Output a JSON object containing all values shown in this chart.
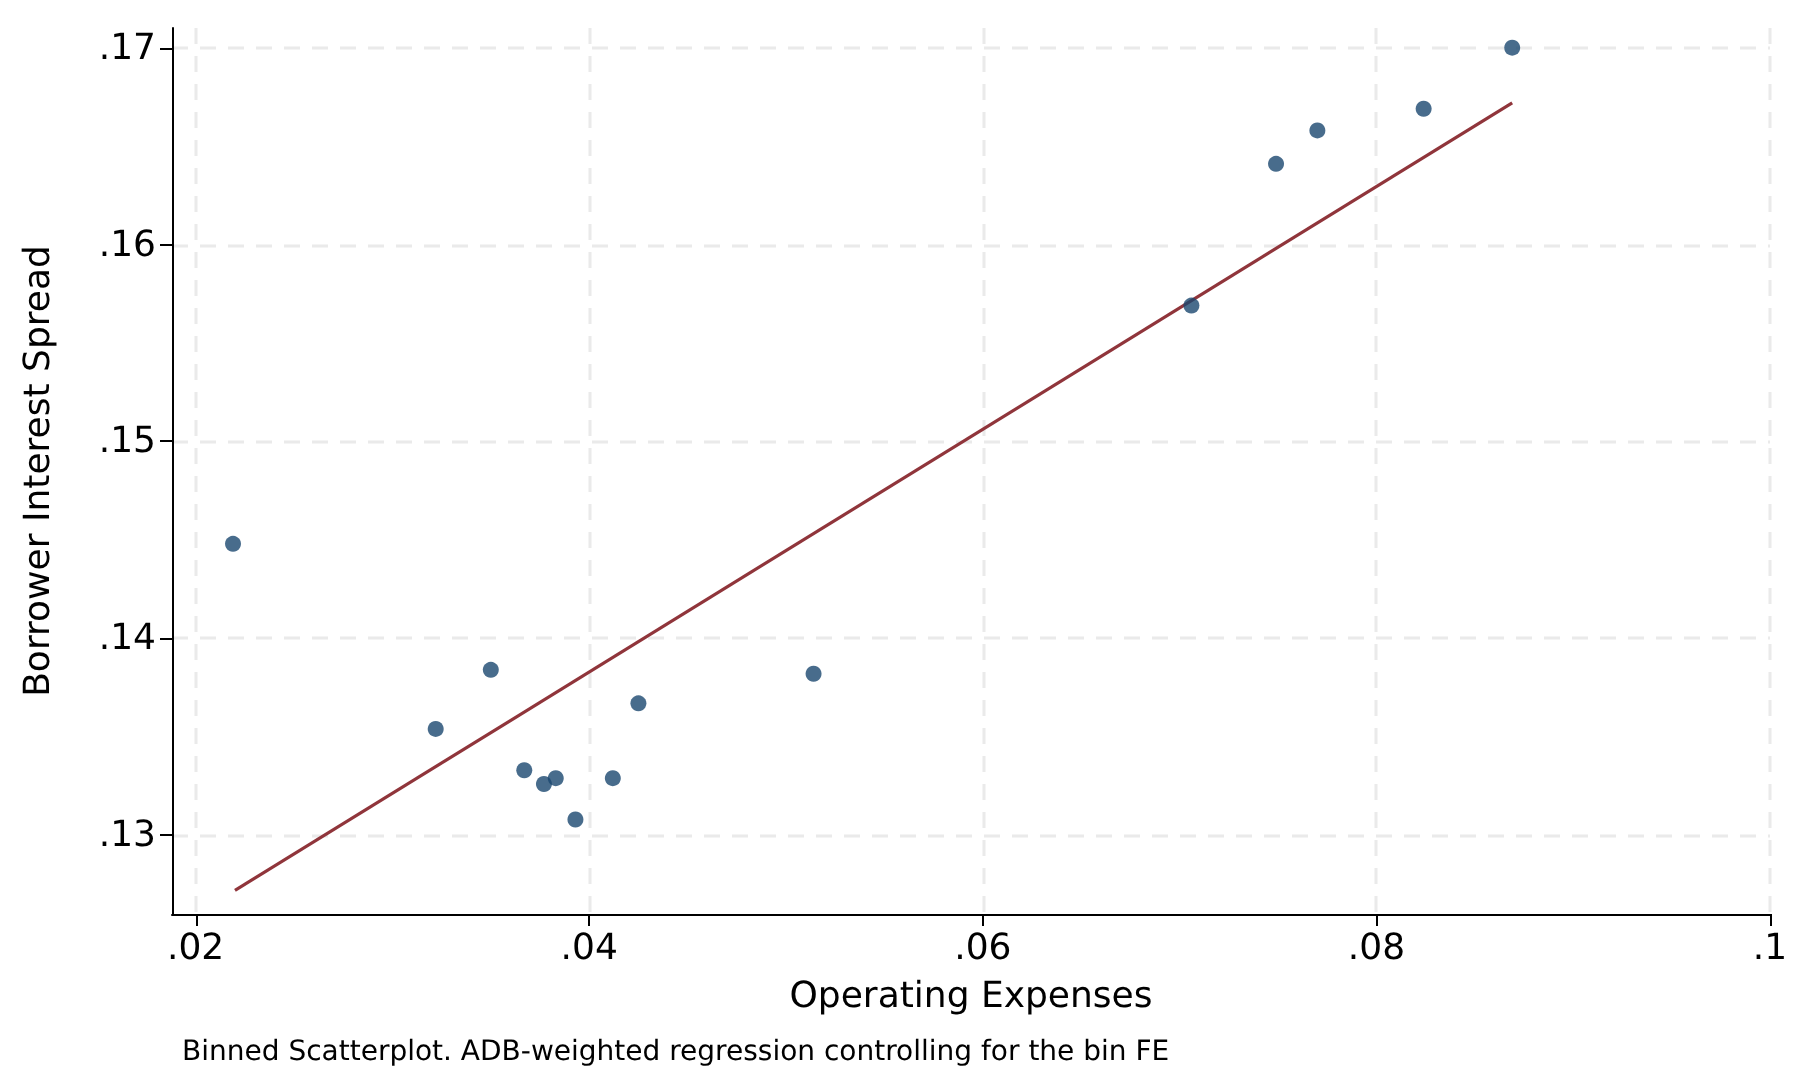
{
  "chart_data": {
    "type": "scatter",
    "xlabel": "Operating Expenses",
    "ylabel": "Borrower Interest Spread",
    "annotations": [
      "Binned Scatterplot. ADB-weighted regression controlling for the bin FE"
    ],
    "xlim": [
      0.0188,
      0.1
    ],
    "ylim": [
      0.126,
      0.171
    ],
    "xticks": [
      {
        "value": 0.02,
        "label": ".02"
      },
      {
        "value": 0.04,
        "label": ".04"
      },
      {
        "value": 0.06,
        "label": ".06"
      },
      {
        "value": 0.08,
        "label": ".08"
      },
      {
        "value": 0.1,
        "label": ".1"
      }
    ],
    "yticks": [
      {
        "value": 0.13,
        "label": ".13"
      },
      {
        "value": 0.14,
        "label": ".14"
      },
      {
        "value": 0.15,
        "label": ".15"
      },
      {
        "value": 0.16,
        "label": ".16"
      },
      {
        "value": 0.17,
        "label": ".17"
      }
    ],
    "grid": true,
    "marker": "circle",
    "series": [
      {
        "color": "#1a476f",
        "x": [
          0.0219,
          0.0322,
          0.035,
          0.0367,
          0.0377,
          0.0383,
          0.0393,
          0.0412,
          0.0425,
          0.0514,
          0.0706,
          0.0749,
          0.077,
          0.0824,
          0.0869
        ],
        "values": [
          0.1448,
          0.1354,
          0.1384,
          0.1333,
          0.1326,
          0.1329,
          0.1308,
          0.1329,
          0.1367,
          0.1382,
          0.1569,
          0.1641,
          0.1658,
          0.1669,
          0.17
        ]
      },
      {
        "type": "line",
        "color": "#90353b",
        "line_style": "solid",
        "marker": "none",
        "x": [
          0.022,
          0.0869
        ],
        "values": [
          0.1272,
          0.1672
        ]
      }
    ]
  }
}
